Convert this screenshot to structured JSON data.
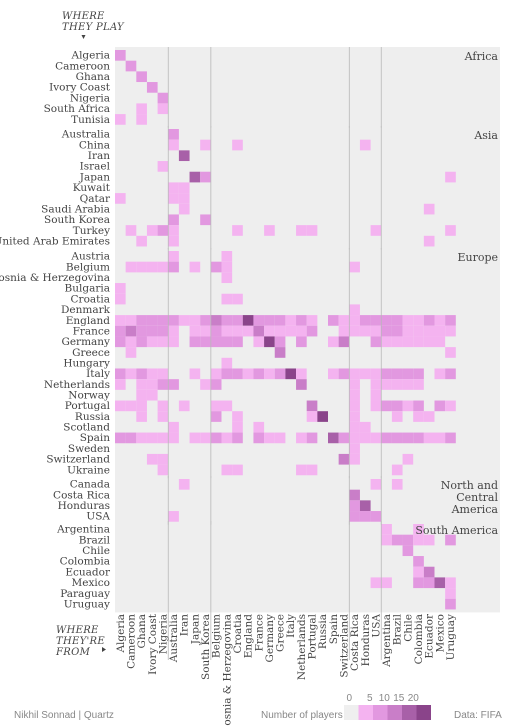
{
  "chart_data": {
    "type": "heatmap",
    "row_title": "WHERE THEY PLAY",
    "col_title": "WHERE THEY'RE FROM",
    "legend": {
      "title": "Number of players",
      "ticks": [
        0,
        5,
        10,
        15,
        20
      ],
      "colors": [
        "#efefef",
        "#f4b3f0",
        "#e298e0",
        "#c97ec8",
        "#a860a8",
        "#8a448a"
      ]
    },
    "credit": "Nikhil Sonnad | Quartz",
    "source": "Data: FIFA",
    "columns": [
      {
        "name": "Africa",
        "teams": [
          "Algeria",
          "Cameroon",
          "Ghana",
          "Ivory Coast",
          "Nigeria"
        ]
      },
      {
        "name": "Asia",
        "teams": [
          "Australia",
          "Iran",
          "Japan",
          "South Korea"
        ]
      },
      {
        "name": "Europe",
        "teams": [
          "Belgium",
          "Bosnia & Herzegovina",
          "Croatia",
          "England",
          "France",
          "Germany",
          "Greece",
          "Italy",
          "Netherlands",
          "Portugal",
          "Russia",
          "Spain",
          "Switzerland"
        ]
      },
      {
        "name": "North and Central America",
        "teams": [
          "Costa Rica",
          "Honduras",
          "USA"
        ]
      },
      {
        "name": "South America",
        "teams": [
          "Argentina",
          "Brazil",
          "Chile",
          "Colombia",
          "Ecuador",
          "Mexico",
          "Uruguay"
        ]
      }
    ],
    "groups": [
      {
        "name": "Africa",
        "rows": [
          {
            "league": "Algeria",
            "players": {
              "Algeria": 3
            }
          },
          {
            "league": "Cameroon",
            "players": {
              "Cameroon": 3
            }
          },
          {
            "league": "Ghana",
            "players": {
              "Ghana": 3
            }
          },
          {
            "league": "Ivory Coast",
            "players": {
              "Ivory Coast": 3
            }
          },
          {
            "league": "Nigeria",
            "players": {
              "Nigeria": 4
            }
          },
          {
            "league": "South Africa",
            "players": {
              "Ghana": 2,
              "Nigeria": 1
            }
          },
          {
            "league": "Tunisia",
            "players": {
              "Algeria": 1,
              "Ghana": 1
            }
          }
        ]
      },
      {
        "name": "Asia",
        "rows": [
          {
            "league": "Australia",
            "players": {
              "Australia": 6
            }
          },
          {
            "league": "China",
            "players": {
              "Australia": 2,
              "South Korea": 1,
              "Croatia": 1,
              "Honduras": 1
            }
          },
          {
            "league": "Iran",
            "players": {
              "Iran": 15
            }
          },
          {
            "league": "Israel",
            "players": {
              "Nigeria": 1
            }
          },
          {
            "league": "Japan",
            "players": {
              "Japan": 12,
              "South Korea": 4,
              "Uruguay": 1
            }
          },
          {
            "league": "Kuwait",
            "players": {
              "Australia": 1,
              "Iran": 1
            }
          },
          {
            "league": "Qatar",
            "players": {
              "Algeria": 1,
              "Australia": 1,
              "Iran": 2
            }
          },
          {
            "league": "Saudi Arabia",
            "players": {
              "Iran": 1,
              "Ecuador": 1
            }
          },
          {
            "league": "South Korea",
            "players": {
              "Australia": 3,
              "South Korea": 6
            }
          },
          {
            "league": "Turkey",
            "players": {
              "Cameroon": 2,
              "Ivory Coast": 2,
              "Nigeria": 3,
              "Australia": 1,
              "Croatia": 1,
              "Germany": 1,
              "Netherlands": 2,
              "Portugal": 1,
              "USA": 1,
              "Uruguay": 1
            }
          },
          {
            "league": "United Arab Emirates",
            "players": {
              "Ghana": 1,
              "Australia": 1,
              "Ecuador": 1
            }
          }
        ]
      },
      {
        "name": "Europe",
        "rows": [
          {
            "league": "Austria",
            "players": {
              "Australia": 1,
              "Bosnia & Herzegovina": 1
            }
          },
          {
            "league": "Belgium",
            "players": {
              "Cameroon": 1,
              "Ghana": 1,
              "Ivory Coast": 1,
              "Nigeria": 1,
              "Australia": 3,
              "Japan": 1,
              "Belgium": 4,
              "Bosnia & Herzegovina": 1,
              "Costa Rica": 1
            }
          },
          {
            "league": "Bosnia & Herzegovina",
            "players": {
              "Bosnia & Herzegovina": 2
            }
          },
          {
            "league": "Bulgaria",
            "players": {
              "Algeria": 1
            }
          },
          {
            "league": "Croatia",
            "players": {
              "Algeria": 1,
              "Bosnia & Herzegovina": 1,
              "Croatia": 2
            }
          },
          {
            "league": "Denmark",
            "players": {
              "Costa Rica": 1
            }
          },
          {
            "league": "England",
            "players": {
              "Algeria": 2,
              "Cameroon": 2,
              "Ghana": 3,
              "Ivory Coast": 4,
              "Nigeria": 5,
              "Australia": 4,
              "Iran": 1,
              "Japan": 2,
              "South Korea": 3,
              "Belgium": 10,
              "Bosnia & Herzegovina": 3,
              "Croatia": 3,
              "England": 23,
              "France": 6,
              "Germany": 3,
              "Greece": 4,
              "Italy": 2,
              "Netherlands": 4,
              "Portugal": 2,
              "Spain": 6,
              "Switzerland": 2,
              "Costa Rica": 2,
              "Honduras": 4,
              "USA": 5,
              "Argentina": 5,
              "Brazil": 3,
              "Chile": 2,
              "Colombia": 2,
              "Ecuador": 3,
              "Mexico": 1,
              "Uruguay": 3
            }
          },
          {
            "league": "France",
            "players": {
              "Algeria": 6,
              "Cameroon": 7,
              "Ghana": 3,
              "Ivory Coast": 6,
              "Nigeria": 3,
              "Australia": 1,
              "Japan": 1,
              "South Korea": 1,
              "Belgium": 3,
              "Bosnia & Herzegovina": 1,
              "Croatia": 2,
              "England": 1,
              "France": 9,
              "Germany": 1,
              "Greece": 2,
              "Italy": 1,
              "Netherlands": 1,
              "Portugal": 3,
              "Switzerland": 2,
              "Costa Rica": 1,
              "Honduras": 1,
              "USA": 1,
              "Argentina": 3,
              "Brazil": 4,
              "Chile": 1,
              "Colombia": 2,
              "Ecuador": 1,
              "Mexico": 2,
              "Uruguay": 2
            }
          },
          {
            "league": "Germany",
            "players": {
              "Algeria": 3,
              "Cameroon": 2,
              "Ghana": 4,
              "Ivory Coast": 2,
              "Nigeria": 1,
              "Australia": 2,
              "Japan": 5,
              "South Korea": 4,
              "Belgium": 3,
              "Bosnia & Herzegovina": 4,
              "Croatia": 4,
              "France": 2,
              "Germany": 16,
              "Greece": 5,
              "Netherlands": 3,
              "Spain": 2,
              "Switzerland": 7,
              "USA": 5,
              "Argentina": 1,
              "Brazil": 2,
              "Chile": 2,
              "Colombia": 1,
              "Ecuador": 1,
              "Mexico": 1
            }
          },
          {
            "league": "Greece",
            "players": {
              "Cameroon": 1,
              "Greece": 9,
              "Uruguay": 1
            }
          },
          {
            "league": "Hungary",
            "players": {
              "Bosnia & Herzegovina": 1
            }
          },
          {
            "league": "Italy",
            "players": {
              "Algeria": 3,
              "Cameroon": 1,
              "Ghana": 3,
              "Ivory Coast": 2,
              "Nigeria": 2,
              "Japan": 2,
              "Belgium": 2,
              "Bosnia & Herzegovina": 3,
              "Croatia": 3,
              "England": 1,
              "France": 3,
              "Germany": 2,
              "Greece": 3,
              "Italy": 18,
              "Netherlands": 2,
              "Spain": 1,
              "Switzerland": 6,
              "Costa Rica": 2,
              "Honduras": 1,
              "USA": 1,
              "Argentina": 6,
              "Brazil": 6,
              "Chile": 4,
              "Colombia": 5,
              "Mexico": 1,
              "Uruguay": 5
            }
          },
          {
            "league": "Netherlands",
            "players": {
              "Algeria": 1,
              "Ghana": 2,
              "Ivory Coast": 2,
              "Nigeria": 3,
              "Australia": 4,
              "South Korea": 1,
              "Belgium": 5,
              "Netherlands": 7,
              "Costa Rica": 1,
              "USA": 1,
              "Argentina": 2,
              "Brazil": 1,
              "Chile": 1,
              "Colombia": 1
            }
          },
          {
            "league": "Norway",
            "players": {
              "Ghana": 1,
              "Ivory Coast": 1,
              "Costa Rica": 1,
              "USA": 1
            }
          },
          {
            "league": "Portugal",
            "players": {
              "Algeria": 2,
              "Cameroon": 1,
              "Ghana": 1,
              "Nigeria": 2,
              "Iran": 1,
              "Belgium": 1,
              "Bosnia & Herzegovina": 1,
              "Portugal": 8,
              "Costa Rica": 1,
              "USA": 1,
              "Argentina": 3,
              "Brazil": 3,
              "Chile": 1,
              "Colombia": 4,
              "Mexico": 3,
              "Uruguay": 2
            }
          },
          {
            "league": "Russia",
            "players": {
              "Ghana": 1,
              "Nigeria": 2,
              "Belgium": 3,
              "Croatia": 1,
              "Portugal": 2,
              "Russia": 22,
              "Costa Rica": 1,
              "Brazil": 1,
              "Colombia": 1,
              "Ecuador": 1
            }
          },
          {
            "league": "Scotland",
            "players": {
              "Australia": 1,
              "Croatia": 1,
              "France": 1,
              "Costa Rica": 1,
              "Honduras": 1
            }
          },
          {
            "league": "Spain",
            "players": {
              "Algeria": 3,
              "Cameroon": 3,
              "Ghana": 1,
              "Ivory Coast": 1,
              "Nigeria": 1,
              "Australia": 2,
              "Japan": 1,
              "South Korea": 1,
              "Belgium": 3,
              "Bosnia & Herzegovina": 1,
              "Croatia": 3,
              "France": 4,
              "Germany": 1,
              "Greece": 1,
              "Netherlands": 1,
              "Portugal": 3,
              "Spain": 12,
              "Switzerland": 3,
              "Costa Rica": 1,
              "Honduras": 1,
              "USA": 1,
              "Argentina": 6,
              "Brazil": 4,
              "Chile": 3,
              "Colombia": 4,
              "Ecuador": 2,
              "Mexico": 2,
              "Uruguay": 4
            }
          },
          {
            "league": "Sweden",
            "players": {
              "Costa Rica": 1
            }
          },
          {
            "league": "Switzerland",
            "players": {
              "Ivory Coast": 1,
              "Nigeria": 1,
              "Switzerland": 8,
              "Costa Rica": 1,
              "Chile": 1
            }
          },
          {
            "league": "Ukraine",
            "players": {
              "Nigeria": 1,
              "Bosnia & Herzegovina": 1,
              "Croatia": 1,
              "Netherlands": 1,
              "Portugal": 1,
              "Brazil": 1
            }
          }
        ]
      },
      {
        "name": "North and Central America",
        "rows": [
          {
            "league": "Canada",
            "players": {
              "Iran": 1,
              "USA": 1,
              "Brazil": 1
            }
          },
          {
            "league": "Costa Rica",
            "players": {
              "Costa Rica": 7
            }
          },
          {
            "league": "Honduras",
            "players": {
              "Costa Rica": 4,
              "Honduras": 11
            }
          },
          {
            "league": "USA",
            "players": {
              "Australia": 1,
              "Costa Rica": 3,
              "Honduras": 4,
              "USA": 6
            }
          }
        ]
      },
      {
        "name": "South America",
        "rows": [
          {
            "league": "Argentina",
            "players": {
              "Argentina": 1,
              "Colombia": 1
            }
          },
          {
            "league": "Brazil",
            "players": {
              "Argentina": 1,
              "Brazil": 4,
              "Chile": 3,
              "Colombia": 2,
              "Ecuador": 2,
              "Uruguay": 3
            }
          },
          {
            "league": "Chile",
            "players": {
              "Chile": 6
            }
          },
          {
            "league": "Colombia",
            "players": {
              "Colombia": 3
            }
          },
          {
            "league": "Ecuador",
            "players": {
              "Colombia": 1,
              "Ecuador": 9
            }
          },
          {
            "league": "Mexico",
            "players": {
              "USA": 2,
              "Argentina": 1,
              "Colombia": 4,
              "Ecuador": 6,
              "Mexico": 14,
              "Uruguay": 2
            }
          },
          {
            "league": "Paraguay",
            "players": {
              "Uruguay": 1
            }
          },
          {
            "league": "Uruguay",
            "players": {
              "Uruguay": 3
            }
          }
        ]
      }
    ]
  }
}
